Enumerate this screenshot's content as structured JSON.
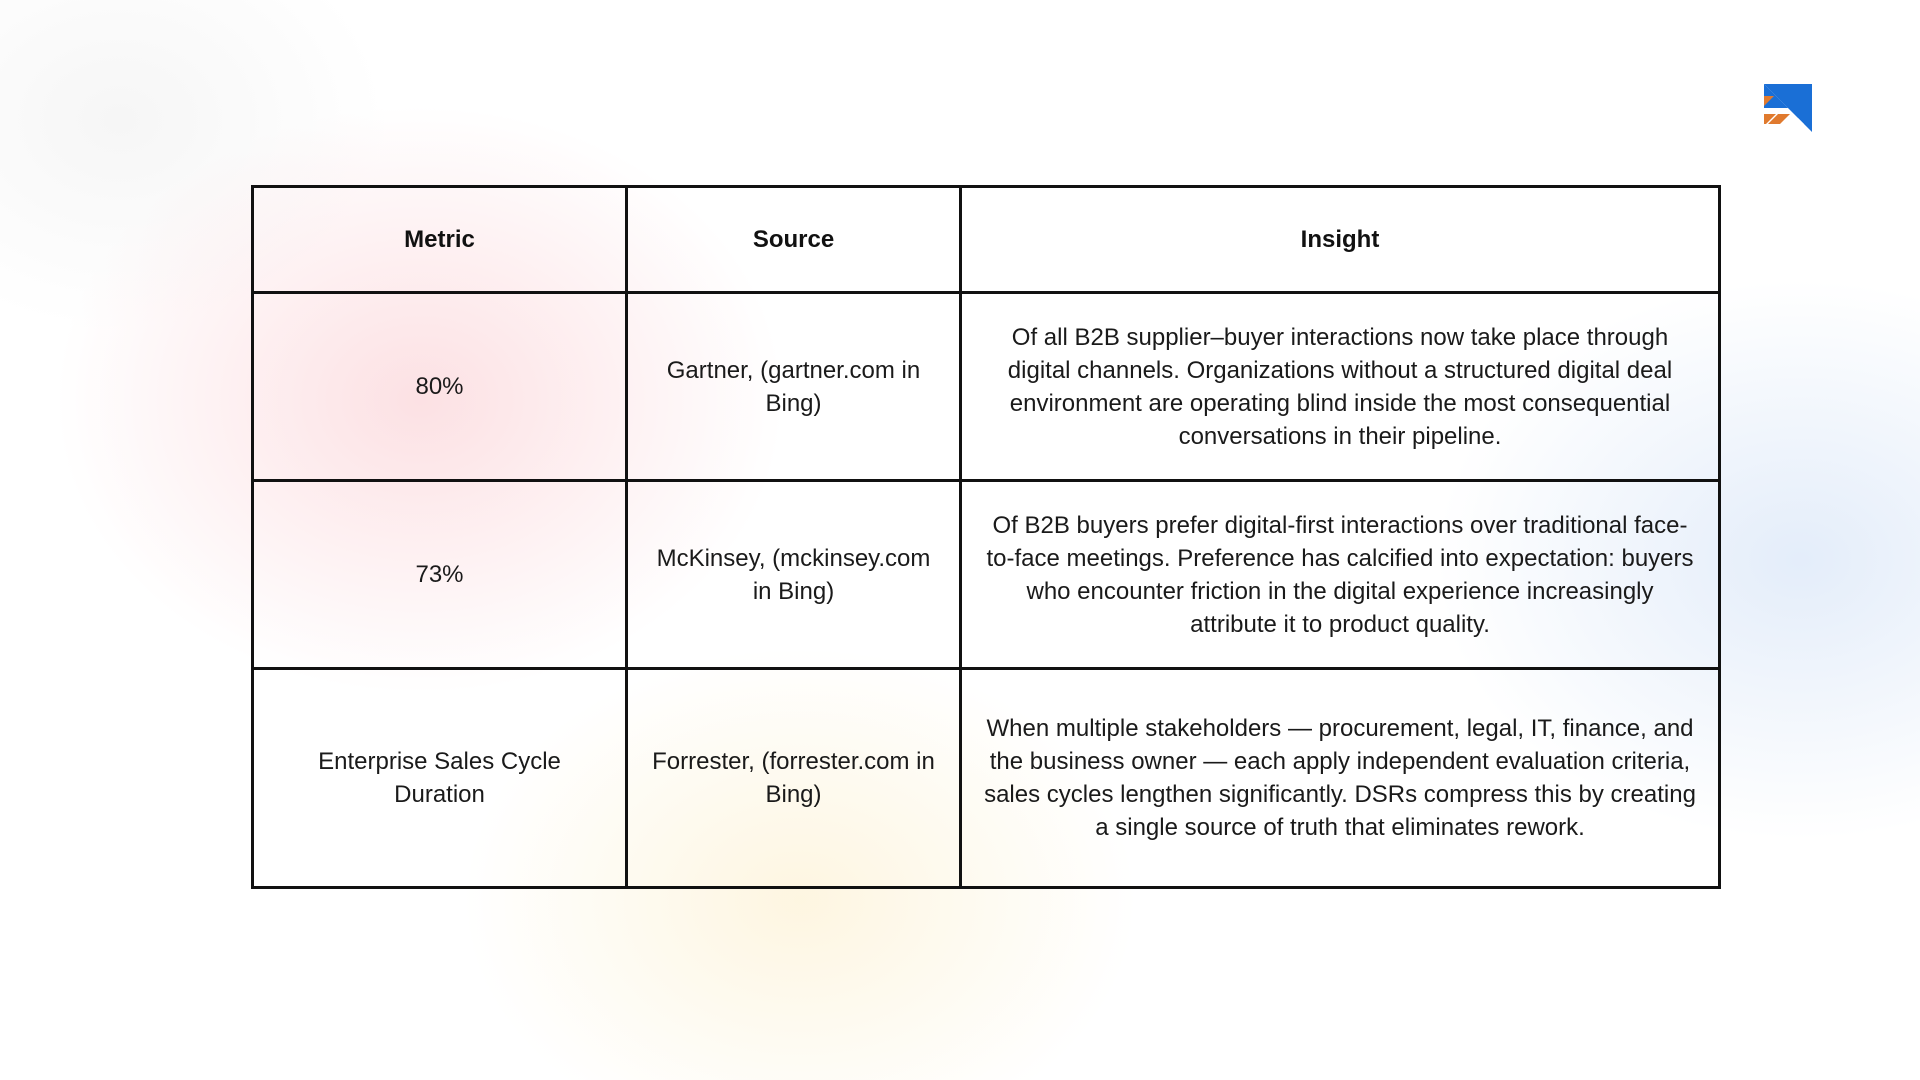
{
  "logo": {
    "icon": "brand-logo-icon",
    "colors": {
      "blue": "#1a6fd6",
      "orange": "#e07a2e"
    }
  },
  "table": {
    "headers": {
      "metric": "Metric",
      "source": "Source",
      "insight": "Insight"
    },
    "rows": [
      {
        "metric": "80%",
        "source": "Gartner,  (gartner.com in Bing)",
        "insight": "Of all B2B supplier–buyer interactions now take place through digital channels. Organizations without a structured digital deal environment are operating blind inside the most consequential conversations in their pipeline."
      },
      {
        "metric": "73%",
        "source": "McKinsey, (mckinsey.com in Bing)",
        "insight": "Of B2B buyers prefer digital-first interactions over traditional face-to-face meetings. Preference has calcified into expectation: buyers who encounter friction in the digital experience increasingly attribute it to product quality."
      },
      {
        "metric": "Enterprise Sales Cycle Duration",
        "source": "Forrester,  (forrester.com in Bing)",
        "insight": "When multiple stakeholders — procurement, legal, IT, finance, and the business owner — each apply independent evaluation criteria, sales cycles lengthen significantly. DSRs compress this by creating a single source of truth that eliminates rework."
      }
    ]
  }
}
